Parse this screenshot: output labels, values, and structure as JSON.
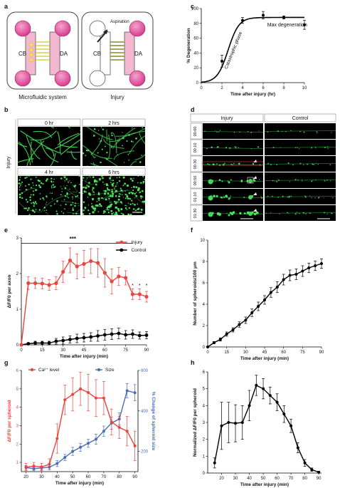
{
  "panel_labels": {
    "a": "a",
    "b": "b",
    "c": "c",
    "d": "d",
    "e": "e",
    "f": "f",
    "g": "g",
    "h": "h"
  },
  "panel_a": {
    "left": {
      "cb": "CB",
      "da": "DA",
      "caption": "Microfluidic system"
    },
    "right": {
      "cb": "CB",
      "da": "DA",
      "caption": "Injury",
      "aspiration": "Aspiration"
    }
  },
  "panel_b": {
    "side_label": "Injury",
    "tiles": [
      "0 hr",
      "2 hrs",
      "4 hr",
      "6 hrs"
    ]
  },
  "panel_d": {
    "col_injury": "Injury",
    "col_control": "Control",
    "times": [
      "00:00",
      "00:10",
      "00:30",
      "00:50",
      "01:10",
      "01:30"
    ]
  },
  "colors": {
    "red": "#e8453c",
    "blue": "#4a6db5",
    "black": "#000000",
    "green": "#3fbf4a",
    "magenta": "#d63d8f",
    "pink": "#f3b7cf"
  },
  "chart_data": [
    {
      "panel": "c",
      "type": "scatter",
      "xlabel": "Time after injury (hr)",
      "ylabel": "% Degeneration",
      "xlim": [
        0,
        10
      ],
      "ylim": [
        0,
        100
      ],
      "xticks": [
        0,
        2,
        4,
        6,
        8,
        10
      ],
      "yticks": [
        0,
        20,
        40,
        60,
        80,
        100
      ],
      "x": [
        2,
        4,
        6,
        8,
        10
      ],
      "y": [
        29,
        84,
        91,
        88,
        78
      ],
      "err": [
        8,
        4,
        5,
        2,
        6
      ],
      "annotations": [
        "Catastrophic phase",
        "Max degeneration"
      ]
    },
    {
      "panel": "e",
      "type": "line",
      "xlabel": "Time after injury (min)",
      "ylabel": "ΔF/F0 per axon",
      "xlim": [
        0,
        90
      ],
      "ylim": [
        0,
        3
      ],
      "xticks": [
        0,
        15,
        30,
        45,
        60,
        75,
        90
      ],
      "yticks": [
        0,
        1,
        2,
        3
      ],
      "x": [
        0,
        5,
        10,
        15,
        20,
        25,
        30,
        35,
        40,
        45,
        50,
        55,
        60,
        65,
        70,
        75,
        80,
        85,
        90
      ],
      "series": [
        {
          "name": "Injury",
          "values": [
            0,
            1.73,
            1.73,
            1.72,
            1.68,
            1.73,
            2.05,
            2.37,
            2.2,
            2.27,
            2.35,
            2.3,
            2.02,
            1.78,
            1.92,
            1.88,
            1.42,
            1.42,
            1.35
          ],
          "err": [
            0,
            0.18,
            0.15,
            0.15,
            0.15,
            0.18,
            0.3,
            0.35,
            0.35,
            0.38,
            0.35,
            0.4,
            0.4,
            0.35,
            0.25,
            0.2,
            0.15,
            0.15,
            0.15
          ]
        },
        {
          "name": "Control",
          "values": [
            0,
            0.03,
            0.05,
            0.05,
            0.05,
            0.1,
            0.12,
            0.15,
            0.18,
            0.2,
            0.22,
            0.25,
            0.28,
            0.3,
            0.32,
            0.28,
            0.3,
            0.26,
            0.27
          ],
          "err": [
            0,
            0.03,
            0.05,
            0.05,
            0.05,
            0.08,
            0.1,
            0.1,
            0.12,
            0.12,
            0.12,
            0.15,
            0.15,
            0.15,
            0.15,
            0.12,
            0.12,
            0.1,
            0.1
          ]
        }
      ],
      "bracket": "***",
      "stars": [
        "*",
        "*",
        "*"
      ]
    },
    {
      "panel": "f",
      "type": "line",
      "xlabel": "Time after injury (min)",
      "ylabel": "Number of spheroids/100 μm",
      "xlim": [
        0,
        90
      ],
      "ylim": [
        0,
        10
      ],
      "xticks": [
        0,
        15,
        30,
        45,
        60,
        75,
        90
      ],
      "yticks": [
        0,
        2,
        4,
        6,
        8,
        10
      ],
      "x": [
        0,
        5,
        10,
        15,
        20,
        25,
        30,
        35,
        40,
        45,
        50,
        55,
        60,
        65,
        70,
        75,
        80,
        85,
        90
      ],
      "y": [
        0,
        0.4,
        0.7,
        1.2,
        1.6,
        2.1,
        2.5,
        3.2,
        3.8,
        4.4,
        5.1,
        5.6,
        6.3,
        6.7,
        6.8,
        7.1,
        7.4,
        7.6,
        7.8
      ],
      "err": [
        0,
        0.1,
        0.15,
        0.2,
        0.2,
        0.25,
        0.3,
        0.35,
        0.4,
        0.4,
        0.45,
        0.5,
        0.5,
        0.5,
        0.5,
        0.5,
        0.45,
        0.45,
        0.45
      ]
    },
    {
      "panel": "g",
      "type": "line",
      "xlabel": "Time after injury (min)",
      "ylabel": "ΔF/F0 per spheroid",
      "y2label": "% Change of spheroid size",
      "xlim": [
        17,
        92
      ],
      "ylim": [
        0.5,
        6
      ],
      "y2lim": [
        100,
        600
      ],
      "xticks": [
        20,
        30,
        40,
        50,
        60,
        70,
        80,
        90
      ],
      "yticks": [
        1,
        2,
        3,
        4,
        5,
        6
      ],
      "y2ticks": [
        200,
        400,
        600
      ],
      "x": [
        20,
        25,
        30,
        35,
        40,
        45,
        50,
        55,
        60,
        65,
        70,
        75,
        80,
        85,
        90
      ],
      "series": [
        {
          "name": "Ca²⁺ level",
          "axis": "left",
          "values": [
            0.75,
            0.8,
            0.75,
            0.9,
            2.3,
            4.4,
            4.7,
            5.0,
            4.8,
            4.5,
            4.5,
            3.2,
            2.9,
            2.7,
            1.9
          ],
          "err": [
            0.2,
            0.2,
            0.2,
            0.3,
            0.8,
            0.8,
            0.9,
            0.9,
            1.0,
            1.0,
            0.9,
            0.7,
            0.6,
            0.8,
            0.8
          ]
        },
        {
          "name": "Size",
          "axis": "right",
          "values": [
            120,
            115,
            118,
            122,
            140,
            170,
            200,
            220,
            240,
            260,
            300,
            340,
            360,
            500,
            490
          ],
          "err": [
            10,
            10,
            10,
            12,
            15,
            15,
            20,
            20,
            20,
            25,
            25,
            30,
            30,
            35,
            40
          ]
        }
      ]
    },
    {
      "panel": "h",
      "type": "line",
      "xlabel": "Time after injury (min)",
      "ylabel": "Normalized ΔF/F0 per spheroid",
      "xlim": [
        10,
        92
      ],
      "ylim": [
        0,
        6
      ],
      "xticks": [
        20,
        30,
        40,
        50,
        60,
        70,
        80,
        90
      ],
      "yticks": [
        0,
        1,
        2,
        3,
        4,
        5,
        6
      ],
      "x": [
        15,
        20,
        25,
        30,
        35,
        40,
        45,
        50,
        55,
        60,
        65,
        70,
        75,
        80,
        85,
        90
      ],
      "y": [
        0.6,
        2.8,
        3.0,
        2.95,
        3.0,
        4.0,
        5.2,
        5.0,
        4.6,
        4.2,
        3.5,
        2.8,
        1.5,
        0.6,
        0.2,
        0.05
      ],
      "err": [
        0.3,
        1.4,
        1.2,
        1.1,
        1.0,
        0.9,
        0.6,
        0.6,
        0.5,
        0.5,
        0.5,
        0.4,
        0.3,
        0.2,
        0.1,
        0.05
      ]
    }
  ]
}
